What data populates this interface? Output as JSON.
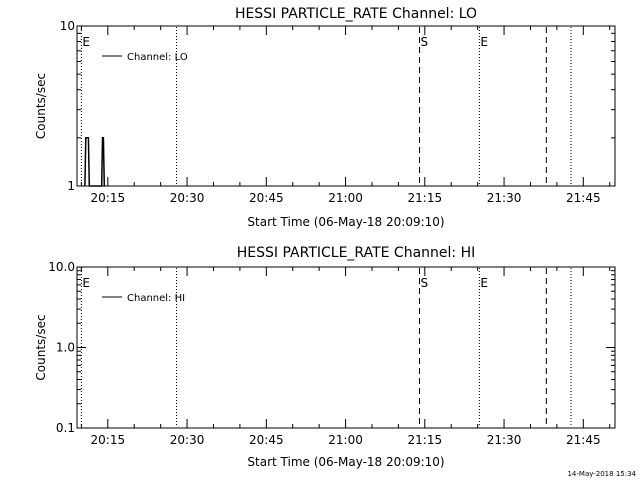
{
  "footer_timestamp": "14-May-2018 15:34",
  "colors": {
    "background": "#ffffff",
    "foreground": "#000000"
  },
  "chart_data": [
    {
      "type": "line",
      "title": "HESSI PARTICLE_RATE Channel: LO",
      "xlabel": "Start Time (06-May-18 20:09:10)",
      "ylabel": "Counts/sec",
      "y_scale": "log",
      "ylim": [
        1,
        10
      ],
      "y_ticks": [
        "10",
        "1"
      ],
      "xlim": [
        "20:09:10",
        "21:51:00"
      ],
      "x_ticks": [
        "20:15",
        "20:30",
        "20:45",
        "21:00",
        "21:15",
        "21:30",
        "21:45"
      ],
      "legend": {
        "entries": [
          "Channel: LO"
        ],
        "placement": "top-left"
      },
      "series": [
        {
          "name": "Channel: LO",
          "x": [
            "20:10:40",
            "20:10:50",
            "20:11:00",
            "20:11:10",
            "20:11:20",
            "20:11:30",
            "20:11:40",
            "20:13:50",
            "20:14:00",
            "20:14:10",
            "20:14:20",
            "20:14:30"
          ],
          "values": [
            1,
            2,
            2,
            2,
            2,
            1,
            1,
            1,
            2,
            2,
            1,
            1
          ]
        }
      ],
      "markers": [
        {
          "time": "20:10:00",
          "style": "dotted",
          "label": "E"
        },
        {
          "time": "20:28:00",
          "style": "dotted",
          "label": ""
        },
        {
          "time": "21:14:00",
          "style": "dashed",
          "label": "S"
        },
        {
          "time": "21:25:20",
          "style": "dotted",
          "label": "E"
        },
        {
          "time": "21:38:00",
          "style": "dashed",
          "label": ""
        },
        {
          "time": "21:42:40",
          "style": "dotted",
          "label": ""
        }
      ]
    },
    {
      "type": "line",
      "title": "HESSI PARTICLE_RATE Channel: HI",
      "xlabel": "Start Time (06-May-18 20:09:10)",
      "ylabel": "Counts/sec",
      "y_scale": "log",
      "ylim": [
        0.1,
        10
      ],
      "y_ticks": [
        "10.0",
        "1.0",
        "0.1"
      ],
      "xlim": [
        "20:09:10",
        "21:51:00"
      ],
      "x_ticks": [
        "20:15",
        "20:30",
        "20:45",
        "21:00",
        "21:15",
        "21:30",
        "21:45"
      ],
      "legend": {
        "entries": [
          "Channel: HI"
        ],
        "placement": "top-left"
      },
      "series": [
        {
          "name": "Channel: HI",
          "x": [],
          "values": []
        }
      ],
      "markers": [
        {
          "time": "20:10:00",
          "style": "dotted",
          "label": "E"
        },
        {
          "time": "20:28:00",
          "style": "dotted",
          "label": ""
        },
        {
          "time": "21:14:00",
          "style": "dashed",
          "label": "S"
        },
        {
          "time": "21:25:20",
          "style": "dotted",
          "label": "E"
        },
        {
          "time": "21:38:00",
          "style": "dashed",
          "label": ""
        },
        {
          "time": "21:42:40",
          "style": "dotted",
          "label": ""
        }
      ]
    }
  ]
}
